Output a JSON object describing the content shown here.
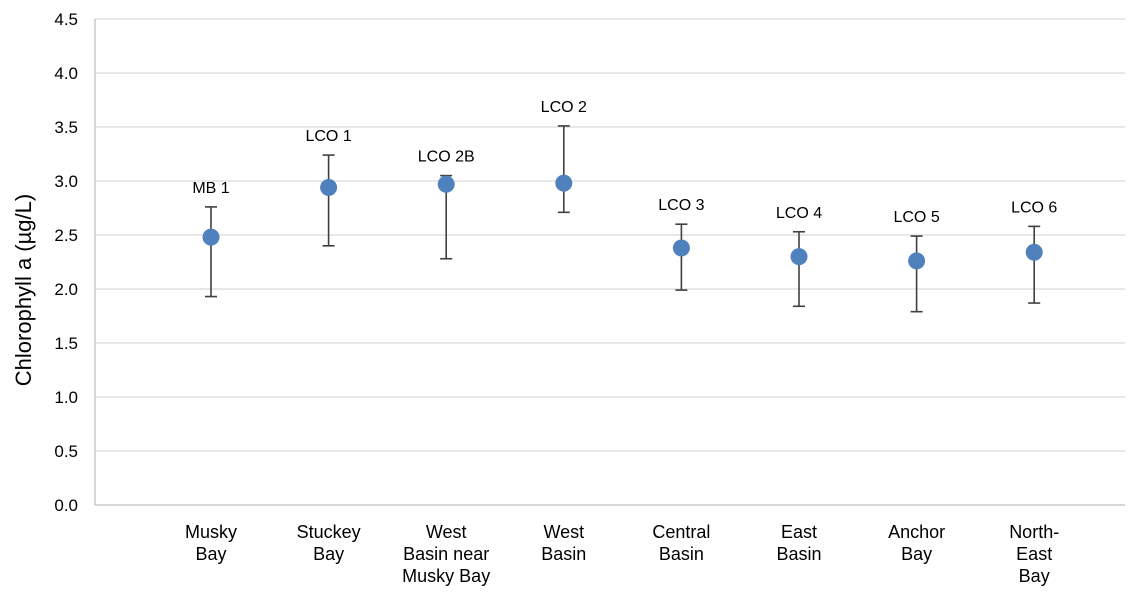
{
  "chart_data": {
    "type": "scatter",
    "title": "",
    "xlabel": "",
    "ylabel": "Chlorophyll a (µg/L)",
    "ylim": [
      0,
      4.5
    ],
    "y_ticks": [
      "0.0",
      "0.5",
      "1.0",
      "1.5",
      "2.0",
      "2.5",
      "3.0",
      "3.5",
      "4.0",
      "4.5"
    ],
    "grid": "horizontal",
    "legend": "none",
    "marker_color": "#4f81bd",
    "error_bar_color": "#404040",
    "points": [
      {
        "category": [
          "Musky",
          "Bay"
        ],
        "label": "MB 1",
        "value": 2.48,
        "high": 2.76,
        "low": 1.93
      },
      {
        "category": [
          "Stuckey",
          "Bay"
        ],
        "label": "LCO 1",
        "value": 2.94,
        "high": 3.24,
        "low": 2.4
      },
      {
        "category": [
          "West",
          "Basin near",
          "Musky Bay"
        ],
        "label": "LCO 2B",
        "value": 2.97,
        "high": 3.05,
        "low": 2.28
      },
      {
        "category": [
          "West",
          "Basin"
        ],
        "label": "LCO 2",
        "value": 2.98,
        "high": 3.51,
        "low": 2.71
      },
      {
        "category": [
          "Central",
          "Basin"
        ],
        "label": "LCO 3",
        "value": 2.38,
        "high": 2.6,
        "low": 1.99
      },
      {
        "category": [
          "East",
          "Basin"
        ],
        "label": "LCO 4",
        "value": 2.3,
        "high": 2.53,
        "low": 1.84
      },
      {
        "category": [
          "Anchor",
          "Bay"
        ],
        "label": "LCO 5",
        "value": 2.26,
        "high": 2.49,
        "low": 1.79
      },
      {
        "category": [
          "North-",
          "East",
          "Bay"
        ],
        "label": "LCO 6",
        "value": 2.34,
        "high": 2.58,
        "low": 1.87
      }
    ]
  }
}
